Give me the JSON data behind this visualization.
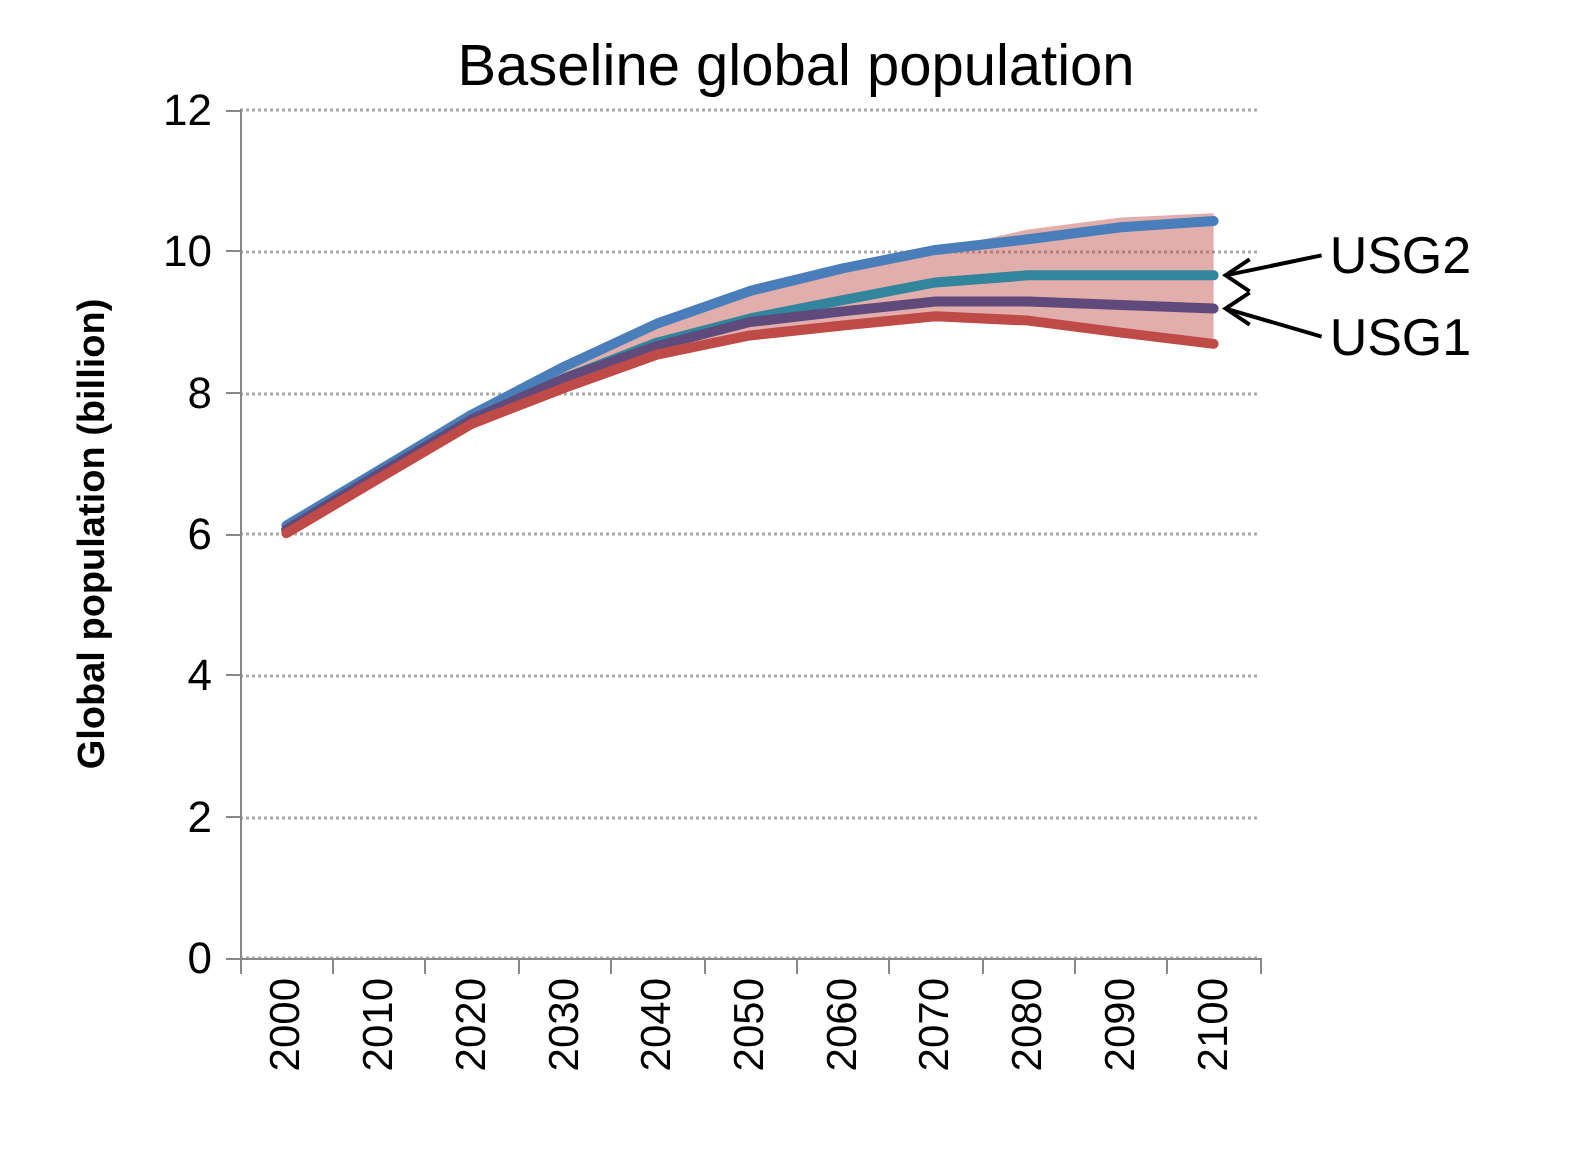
{
  "chart_data": {
    "type": "line",
    "title": "Baseline global population",
    "ylabel": "Global population (billion)",
    "categories": [
      "2000",
      "2010",
      "2020",
      "2030",
      "2040",
      "2050",
      "2060",
      "2070",
      "2080",
      "2090",
      "2100"
    ],
    "ylim": [
      0,
      12
    ],
    "yticks": [
      0,
      2,
      4,
      6,
      8,
      10,
      12
    ],
    "grid": "y",
    "legend": false,
    "marker": "none",
    "line_style": "solid",
    "series": [
      {
        "color": "#4a7ebb",
        "values": [
          6.12,
          6.9,
          7.69,
          8.37,
          8.98,
          9.44,
          9.76,
          10.02,
          10.17,
          10.34,
          10.43
        ]
      },
      {
        "name": "USG2",
        "color": "#31859c",
        "values": [
          6.06,
          6.85,
          7.62,
          8.2,
          8.71,
          9.05,
          9.31,
          9.56,
          9.66,
          9.66,
          9.66
        ]
      },
      {
        "name": "USG1",
        "color": "#604a7b",
        "values": [
          6.06,
          6.85,
          7.62,
          8.2,
          8.66,
          9.0,
          9.15,
          9.29,
          9.29,
          9.24,
          9.19
        ]
      },
      {
        "color": "#be4b48",
        "values": [
          6.01,
          6.79,
          7.56,
          8.07,
          8.54,
          8.81,
          8.95,
          9.08,
          9.02,
          8.85,
          8.69
        ],
        "lower": [
          6.01,
          6.79,
          7.56,
          8.07,
          8.54,
          8.81,
          8.95,
          9.08,
          9.02,
          8.85,
          8.69
        ],
        "upper": [
          6.12,
          6.9,
          7.69,
          8.37,
          8.98,
          9.44,
          9.76,
          10.02,
          10.31,
          10.48,
          10.54
        ]
      }
    ]
  }
}
